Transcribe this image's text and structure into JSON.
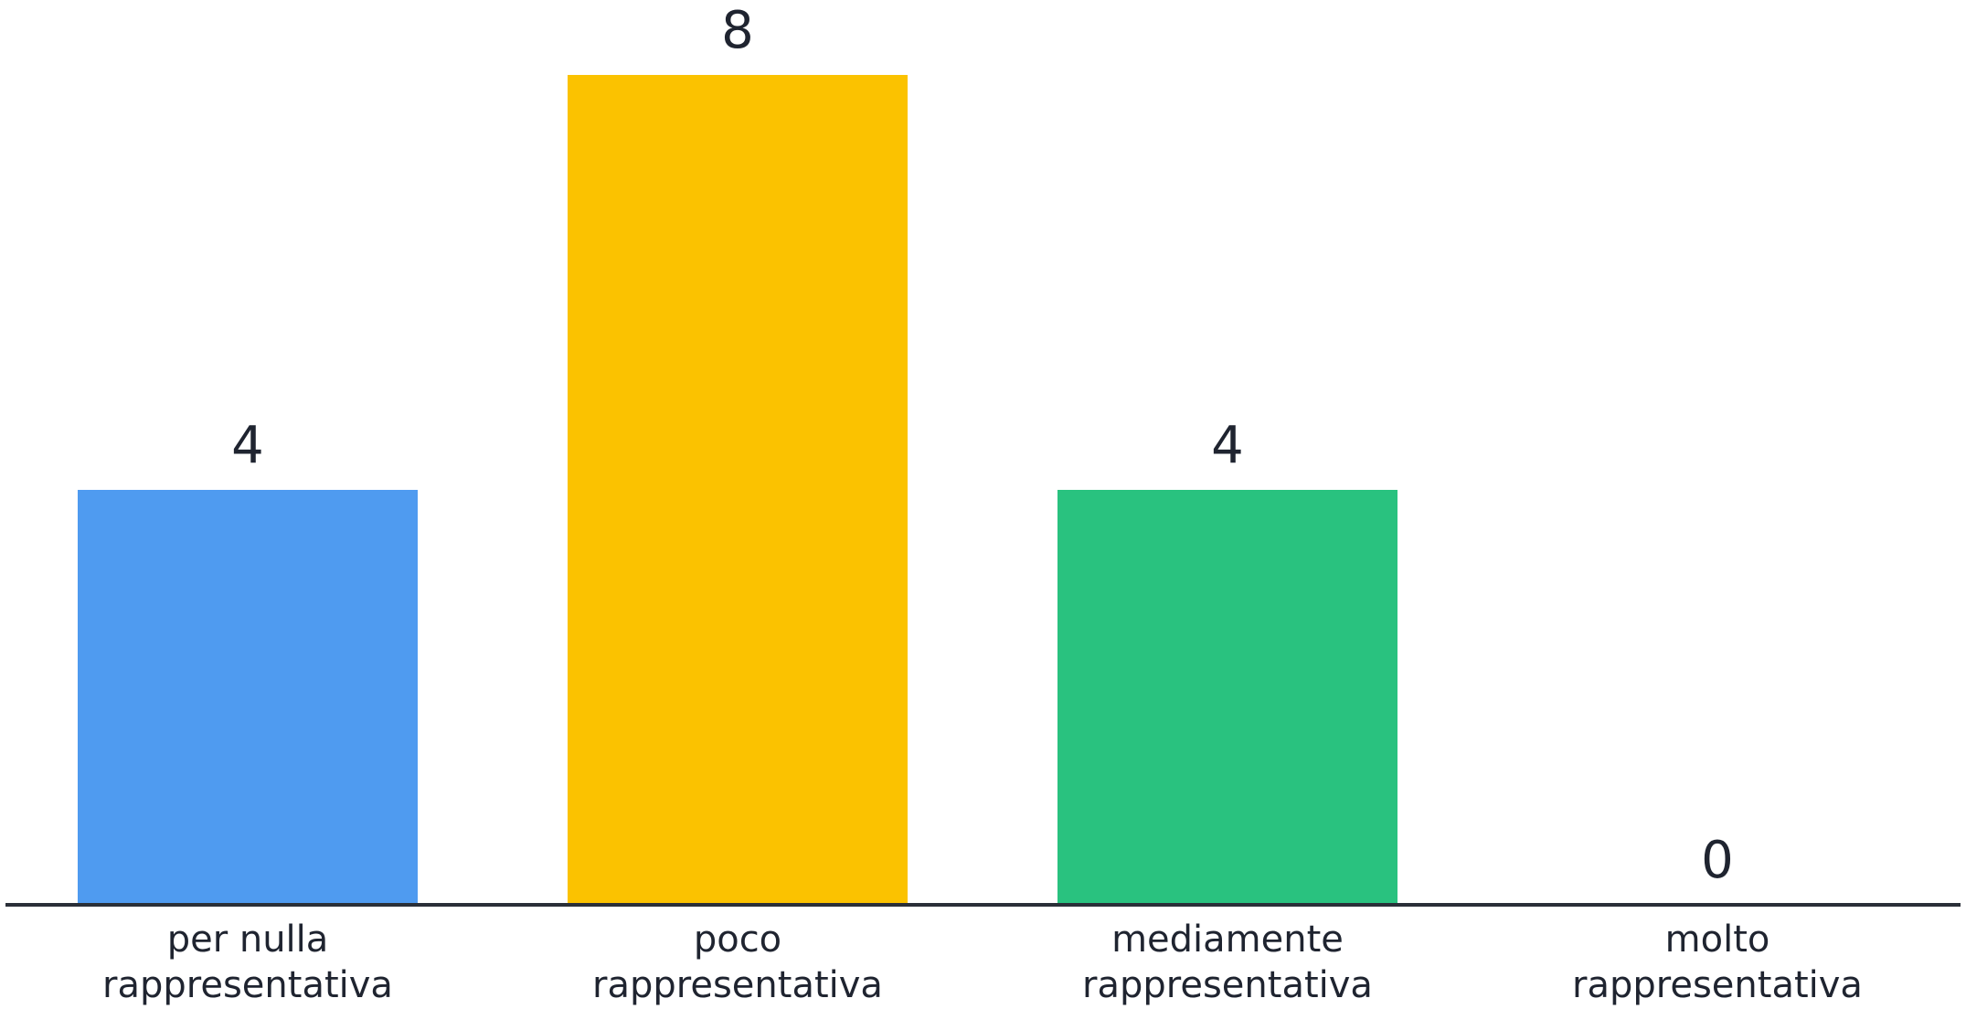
{
  "chart_data": {
    "type": "bar",
    "categories": [
      [
        "per nulla",
        "rappresentativa"
      ],
      [
        "poco",
        "rappresentativa"
      ],
      [
        "mediamente",
        "rappresentativa"
      ],
      [
        "molto",
        "rappresentativa"
      ]
    ],
    "values": [
      4,
      8,
      4,
      0
    ],
    "colors": [
      "#4f9bf0",
      "#fbc200",
      "#29c27f",
      "#e0e0e0"
    ],
    "ylim": [
      0,
      8
    ],
    "grid": false,
    "legend": "none",
    "title": "",
    "xlabel": "",
    "ylabel": "",
    "axis_color": "#2a2f38"
  }
}
